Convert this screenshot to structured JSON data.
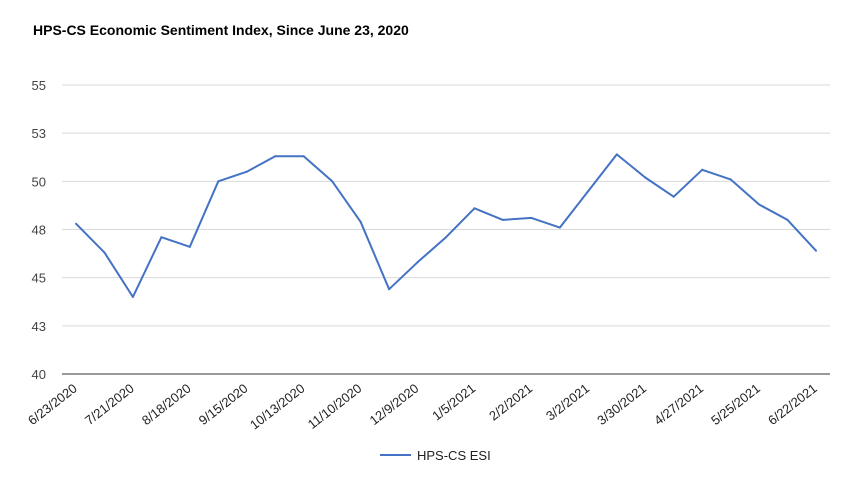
{
  "chart_data": {
    "type": "line",
    "title": "HPS-CS Economic Sentiment Index, Since June 23, 2020",
    "xlabel": "",
    "ylabel": "",
    "ylim": [
      40,
      55
    ],
    "yticks": [
      "40",
      "43",
      "45",
      "48",
      "50",
      "53",
      "55"
    ],
    "ytick_values": [
      40,
      42.5,
      45,
      47.5,
      50,
      52.5,
      55
    ],
    "grid": true,
    "legend_position": "bottom",
    "x_tick_labels": [
      "6/23/2020",
      "7/21/2020",
      "8/18/2020",
      "9/15/2020",
      "10/13/2020",
      "11/10/2020",
      "12/9/2020",
      "1/5/2021",
      "2/2/2021",
      "3/2/2021",
      "3/30/2021",
      "4/27/2021",
      "5/25/2021",
      "6/22/2021"
    ],
    "series": [
      {
        "name": "HPS-CS ESI",
        "color": "#4472c4",
        "x": [
          "6/23/2020",
          "7/7/2020",
          "7/21/2020",
          "8/4/2020",
          "8/18/2020",
          "9/1/2020",
          "9/15/2020",
          "9/29/2020",
          "10/13/2020",
          "10/27/2020",
          "11/10/2020",
          "11/24/2020",
          "12/9/2020",
          "12/22/2020",
          "1/5/2021",
          "1/19/2021",
          "2/2/2021",
          "2/16/2021",
          "3/2/2021",
          "3/16/2021",
          "3/30/2021",
          "4/13/2021",
          "4/27/2021",
          "5/11/2021",
          "5/25/2021",
          "6/8/2021",
          "6/22/2021"
        ],
        "values": [
          47.8,
          46.3,
          44.0,
          47.1,
          46.6,
          50.0,
          50.5,
          51.3,
          51.3,
          50.0,
          47.9,
          44.4,
          45.8,
          47.1,
          48.6,
          48.0,
          48.1,
          47.6,
          49.5,
          51.4,
          50.2,
          49.2,
          50.6,
          50.1,
          48.8,
          48.0,
          46.4
        ]
      }
    ]
  }
}
